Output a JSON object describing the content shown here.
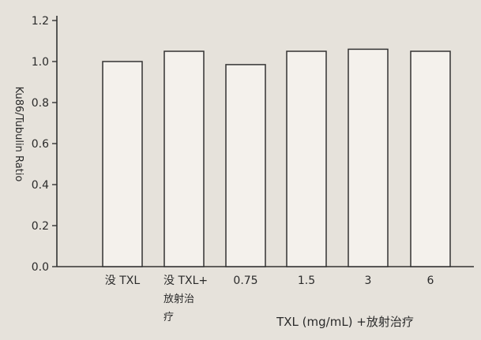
{
  "chart_data": {
    "type": "bar",
    "ylabel": "Ku86/Tubulin Ratio",
    "xlabel": "TXL (mg/mL) +放射治疗",
    "ylim": [
      0.0,
      1.2
    ],
    "yticks": [
      "0.0",
      "0.2",
      "0.4",
      "0.6",
      "0.8",
      "1.0",
      "1.2"
    ],
    "grid": false,
    "categories": [
      [
        "没 TXL"
      ],
      [
        "没 TXL+",
        "放射治",
        "疗"
      ],
      [
        "0.75"
      ],
      [
        "1.5"
      ],
      [
        "3"
      ],
      [
        "6"
      ]
    ],
    "values": [
      1.0,
      1.05,
      0.985,
      1.05,
      1.06,
      1.05
    ],
    "colors": {
      "bar_fill": "#f4f1ec",
      "bar_stroke": "#333333",
      "axis": "#333333"
    }
  }
}
